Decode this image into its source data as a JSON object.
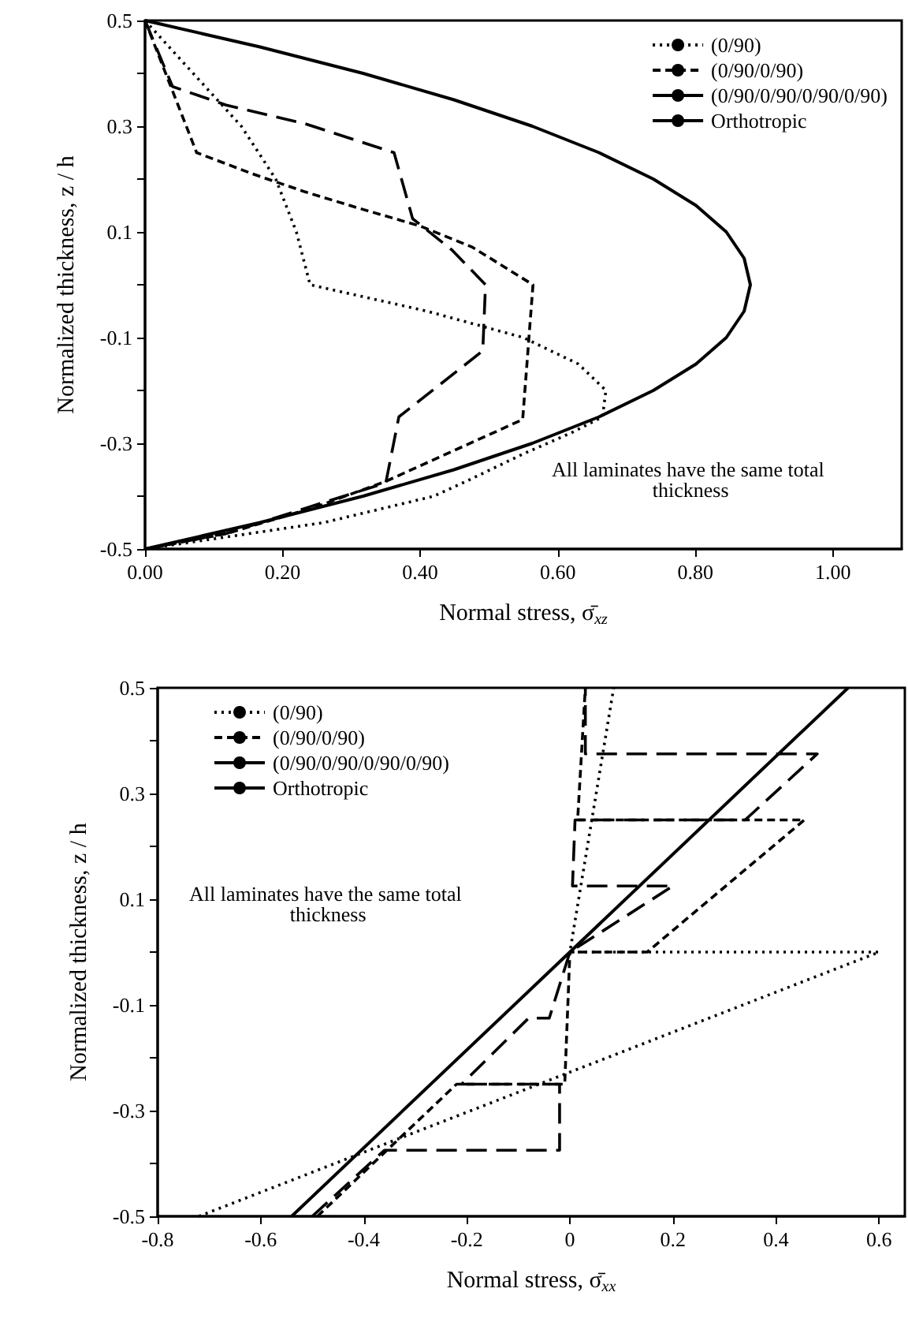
{
  "chart_data": [
    {
      "type": "line",
      "xlabel": "Normal stress, σ̄$_{xz}$",
      "ylabel": "Normalized thickness, z / h",
      "xlim": [
        0,
        1.1
      ],
      "ylim": [
        -0.5,
        0.5
      ],
      "xticks": [
        {
          "value": 0,
          "label": "0.00"
        },
        {
          "value": 0.2,
          "label": "0.20"
        },
        {
          "value": 0.4,
          "label": "0.40"
        },
        {
          "value": 0.6,
          "label": "0.60"
        },
        {
          "value": 0.8,
          "label": "0.80"
        },
        {
          "value": 1,
          "label": "1.00"
        }
      ],
      "yticks": [
        -0.5,
        {
          "value": -0.4,
          "label": null
        },
        -0.3,
        {
          "value": -0.2,
          "label": null
        },
        -0.1,
        {
          "value": 0,
          "label": null
        },
        0.1,
        {
          "value": 0.2,
          "label": null
        },
        0.3,
        {
          "value": 0.4,
          "label": null
        },
        0.5
      ],
      "grid": false,
      "legend": "top right",
      "marker": "none",
      "annotations": [
        "All laminates have the same total thickness"
      ],
      "series": [
        {
          "name": "(0/90)",
          "color": "#000000",
          "line_style": "dotted",
          "x": [
            0,
            0.07,
            0.14,
            0.19,
            0.22,
            0.24,
            0.41,
            0.55,
            0.63,
            0.67,
            0.665,
            0.62,
            0.55,
            0.47,
            0.42,
            0.26,
            0
          ],
          "values": [
            0.5,
            0.4,
            0.3,
            0.2,
            0.1,
            0,
            -0.05,
            -0.1,
            -0.15,
            -0.2,
            -0.25,
            -0.28,
            -0.32,
            -0.37,
            -0.4,
            -0.45,
            -0.5
          ]
        },
        {
          "name": "(0/90/0/90)",
          "color": "#000000",
          "line_style": "dashed",
          "x": [
            0,
            0.075,
            0.156,
            0.232,
            0.308,
            0.4,
            0.476,
            0.564,
            0.549,
            0.35,
            0.247,
            0.118,
            0
          ],
          "values": [
            0.5,
            0.25,
            0.21,
            0.176,
            0.146,
            0.111,
            0.071,
            0,
            -0.255,
            -0.372,
            -0.421,
            -0.471,
            -0.5
          ]
        },
        {
          "name": "(0/90/0/90/0/90/0/90)",
          "color": "#000000",
          "line_style": "dashed",
          "x": [
            0,
            0.04,
            0.118,
            0.232,
            0.362,
            0.389,
            0.446,
            0.495,
            0.491,
            0.369,
            0.35,
            0.24,
            0.12,
            0
          ],
          "values": [
            0.5,
            0.375,
            0.34,
            0.305,
            0.25,
            0.125,
            0.066,
            0,
            -0.125,
            -0.25,
            -0.375,
            -0.42,
            -0.47,
            -0.5
          ]
        },
        {
          "name": "Orthotropic",
          "color": "#000000",
          "line_style": "solid",
          "x": [
            0,
            0.167,
            0.317,
            0.449,
            0.563,
            0.66,
            0.739,
            0.801,
            0.845,
            0.871,
            0.88,
            0.871,
            0.845,
            0.801,
            0.739,
            0.66,
            0.563,
            0.449,
            0.317,
            0.167,
            0
          ],
          "values": [
            0.5,
            0.45,
            0.4,
            0.35,
            0.3,
            0.25,
            0.2,
            0.15,
            0.1,
            0.05,
            0,
            -0.05,
            -0.1,
            -0.15,
            -0.2,
            -0.25,
            -0.3,
            -0.35,
            -0.4,
            -0.45,
            -0.5
          ]
        }
      ]
    },
    {
      "type": "line",
      "xlabel": "Normal stress, σ̄$_{xx}$",
      "ylabel": "Normalized thickness, z / h",
      "xlim": [
        -0.8,
        0.65
      ],
      "ylim": [
        -0.5,
        0.5
      ],
      "xticks": [
        -0.8,
        -0.6,
        -0.4,
        -0.2,
        0,
        0.2,
        0.4,
        0.6
      ],
      "yticks": [
        -0.5,
        {
          "value": -0.4,
          "label": null
        },
        -0.3,
        {
          "value": -0.2,
          "label": null
        },
        -0.1,
        {
          "value": 0,
          "label": null
        },
        0.1,
        {
          "value": 0.2,
          "label": null
        },
        0.3,
        {
          "value": 0.4,
          "label": null
        },
        0.5
      ],
      "grid": false,
      "legend": "top left",
      "marker": "none",
      "annotations": [
        "All laminates have the same total thickness"
      ],
      "series": [
        {
          "name": "(0/90)",
          "color": "#000000",
          "line_style": "dotted",
          "x": [
            -0.72,
            0.6,
            0,
            0.085
          ],
          "values": [
            -0.5,
            0,
            0,
            0.5
          ]
        },
        {
          "name": "(0/90/0/90)",
          "color": "#000000",
          "line_style": "dashed",
          "x": [
            -0.49,
            -0.22,
            -0.01,
            0,
            0.15,
            0.455,
            0.015,
            0.03
          ],
          "values": [
            -0.5,
            -0.25,
            -0.25,
            0,
            0,
            0.25,
            0.25,
            0.5
          ]
        },
        {
          "name": "(0/90/0/90/0/90/0/90)",
          "color": "#000000",
          "line_style": "dashed",
          "x": [
            -0.5,
            -0.36,
            -0.02,
            -0.02,
            -0.21,
            -0.08,
            -0.04,
            0,
            0.2,
            0.005,
            0.01,
            0.34,
            0.48,
            0.03,
            0.03
          ],
          "values": [
            -0.5,
            -0.375,
            -0.375,
            -0.25,
            -0.25,
            -0.125,
            -0.125,
            0,
            0.125,
            0.125,
            0.25,
            0.25,
            0.375,
            0.375,
            0.5
          ]
        },
        {
          "name": "Orthotropic",
          "color": "#000000",
          "line_style": "solid",
          "x": [
            -0.54,
            0.54
          ],
          "values": [
            -0.5,
            0.5
          ]
        }
      ]
    }
  ]
}
